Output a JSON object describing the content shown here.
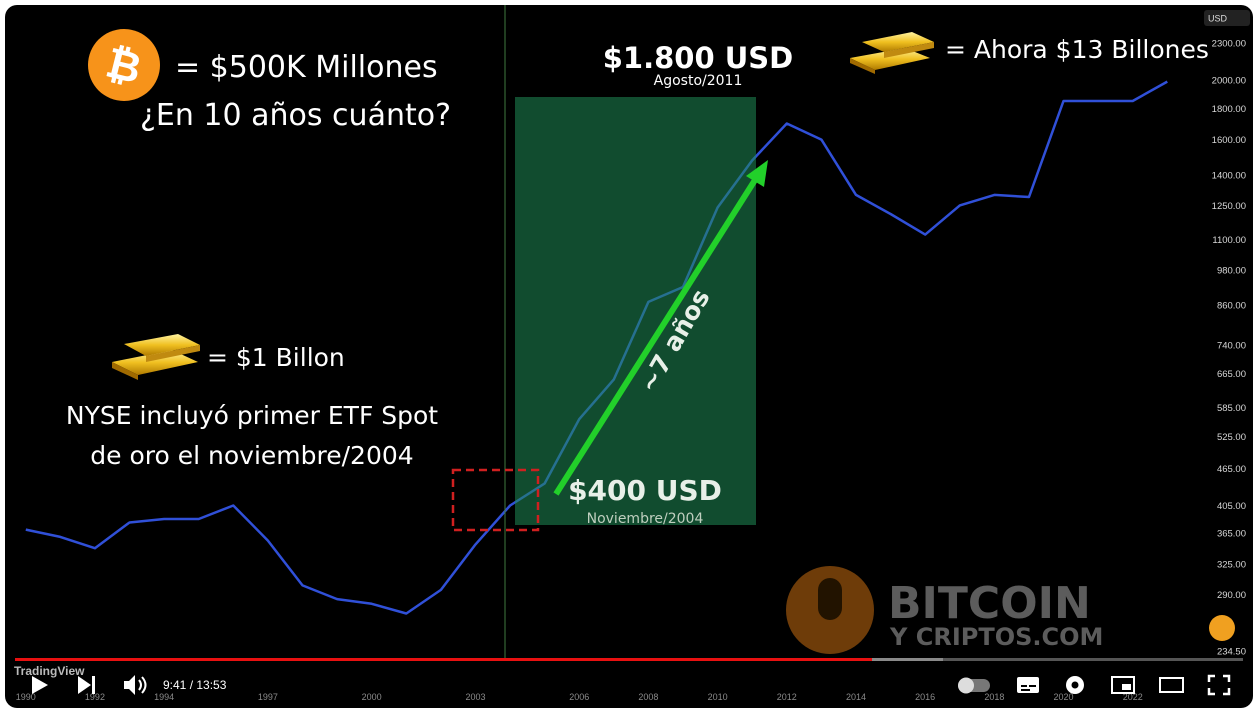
{
  "video": {
    "time": "9:41 / 13:53"
  },
  "overlay": {
    "bitcoin": {
      "symbol": "₿",
      "text": "= $500K Millones",
      "question": "¿En 10 años cuánto?"
    },
    "gold_now": "= Ahora $13 Billones",
    "gold_2004": "= $1 Billon",
    "etf_note": [
      "NYSE incluyó primer ETF Spot",
      "de oro el noviembre/2004"
    ],
    "peak": {
      "price": "$1.800 USD",
      "date": "Agosto/2011"
    },
    "start": {
      "price": "$400 USD",
      "date": "Noviembre/2004"
    },
    "duration": "~7 años",
    "watermark": [
      "BITCOIN",
      "Y CRIPTOS.COM"
    ],
    "source": "TradingView"
  },
  "chart_data": {
    "type": "line",
    "currency": "USD",
    "log_scale": true,
    "color": "#3050d8",
    "x": [
      1990,
      1991,
      1992,
      1993,
      1994,
      1995,
      1996,
      1997,
      1998,
      1999,
      2000,
      2001,
      2002,
      2003,
      2004,
      2005,
      2006,
      2007,
      2008,
      2009,
      2010,
      2011,
      2012,
      2013,
      2014,
      2015,
      2016,
      2017,
      2018,
      2019,
      2020,
      2021,
      2022,
      2023
    ],
    "values": [
      370,
      360,
      345,
      380,
      385,
      385,
      405,
      355,
      300,
      285,
      280,
      270,
      295,
      350,
      405,
      440,
      560,
      650,
      870,
      920,
      1240,
      1480,
      1700,
      1600,
      1300,
      1210,
      1120,
      1250,
      1300,
      1290,
      1850,
      1850,
      1850,
      1990
    ],
    "xlim": [
      1989.4,
      2023.8
    ],
    "xticks": [
      1990,
      1992,
      1994,
      1997,
      2000,
      2003,
      2006,
      2008,
      2010,
      2012,
      2014,
      2016,
      2018,
      2020,
      2022
    ],
    "ylim": [
      234.5,
      2300
    ],
    "yticks": [
      {
        "value": 2300,
        "label": "2300.00"
      },
      {
        "value": 2000,
        "label": "2000.00"
      },
      {
        "value": 1800,
        "label": "1800.00"
      },
      {
        "value": 1600,
        "label": "1600.00"
      },
      {
        "value": 1400,
        "label": "1400.00"
      },
      {
        "value": 1250,
        "label": "1250.00"
      },
      {
        "value": 1100,
        "label": "1100.00"
      },
      {
        "value": 980,
        "label": "980.00"
      },
      {
        "value": 860,
        "label": "860.00"
      },
      {
        "value": 740,
        "label": "740.00"
      },
      {
        "value": 665,
        "label": "665.00"
      },
      {
        "value": 585,
        "label": "585.00"
      },
      {
        "value": 525,
        "label": "525.00"
      },
      {
        "value": 465,
        "label": "465.00"
      },
      {
        "value": 405,
        "label": "405.00"
      },
      {
        "value": 365,
        "label": "365.00"
      },
      {
        "value": 325,
        "label": "325.00"
      },
      {
        "value": 290,
        "label": "290.00"
      },
      {
        "value": 234.5,
        "label": "234.50"
      }
    ]
  }
}
